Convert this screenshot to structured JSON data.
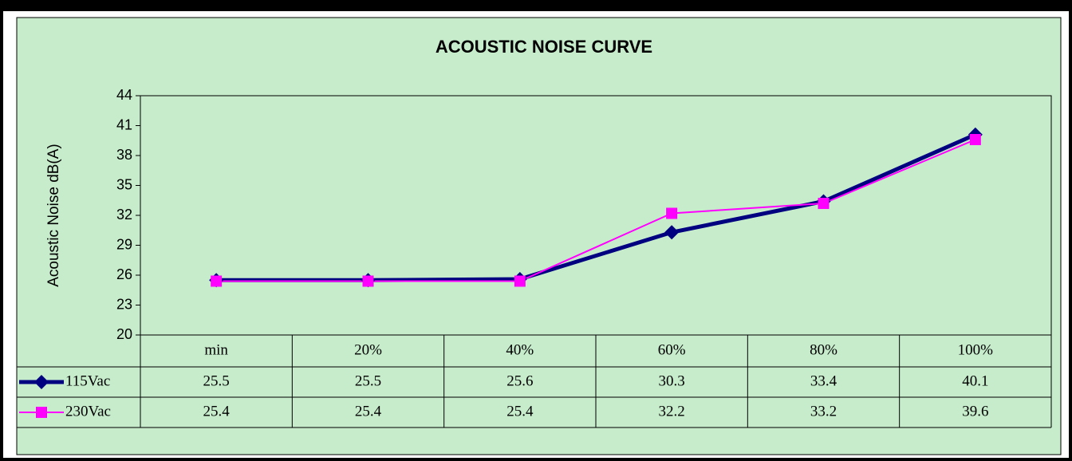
{
  "chart_data": {
    "type": "line",
    "title": "ACOUSTIC NOISE CURVE",
    "y_label": "Acoustic Noise dB(A)",
    "categories": [
      "min",
      "20%",
      "40%",
      "60%",
      "80%",
      "100%"
    ],
    "series": [
      {
        "name": "115Vac",
        "color": "#000080",
        "values": [
          25.5,
          25.5,
          25.6,
          30.3,
          33.4,
          40.1
        ]
      },
      {
        "name": "230Vac",
        "color": "#ff00ff",
        "values": [
          25.4,
          25.4,
          25.4,
          32.2,
          33.2,
          39.6
        ]
      }
    ],
    "ylim": [
      20,
      44
    ],
    "yticks": [
      20,
      23,
      26,
      29,
      32,
      35,
      38,
      41,
      44
    ],
    "grid": false
  }
}
